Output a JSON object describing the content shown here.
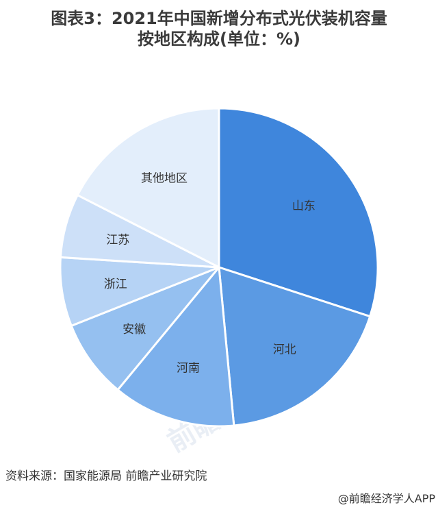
{
  "title": {
    "line1": "图表3：2021年中国新增分布式光伏装机容量",
    "line2": "按地区构成(单位：%)"
  },
  "chart_data": {
    "type": "pie",
    "labels": [
      "山东",
      "河北",
      "河南",
      "安徽",
      "浙江",
      "江苏",
      "其他地区"
    ],
    "values": [
      30.0,
      18.5,
      12.5,
      8.0,
      7.0,
      6.5,
      17.5
    ],
    "colors": [
      "#3f86dc",
      "#5b9ae3",
      "#7cb0ec",
      "#95c0f0",
      "#b6d3f5",
      "#cde0f8",
      "#e3eefb"
    ],
    "start_angle_deg": 0,
    "direction": "clockwise"
  },
  "watermark": {
    "brand": "前瞻产业研究院"
  },
  "source": "资料来源：国家能源局 前瞻产业研究院",
  "credit": "@前瞻经济学人APP"
}
